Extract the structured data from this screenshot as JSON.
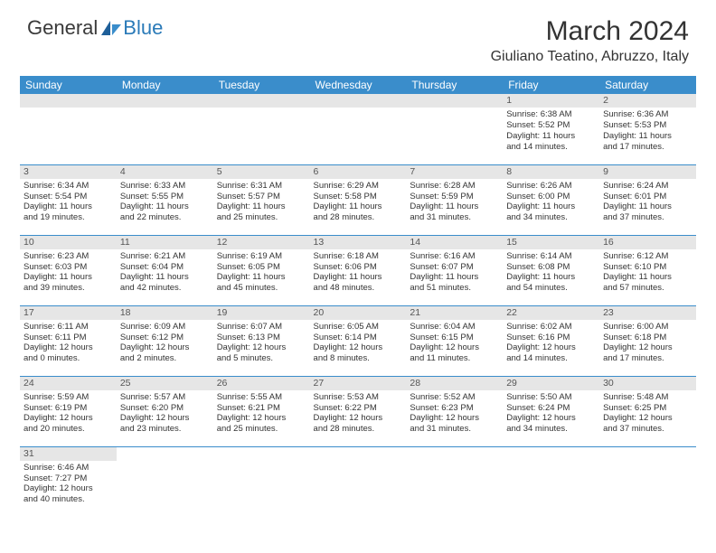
{
  "header": {
    "logo_part1": "General",
    "logo_part2": "Blue",
    "month_title": "March 2024",
    "location": "Giuliano Teatino, Abruzzo, Italy"
  },
  "colors": {
    "header_bg": "#3a8dcb",
    "header_text": "#ffffff",
    "daynum_bg": "#e6e6e6",
    "row_border": "#3a8dcb",
    "logo_gray": "#3a3a3a",
    "logo_blue": "#2a7ab8"
  },
  "weekdays": [
    "Sunday",
    "Monday",
    "Tuesday",
    "Wednesday",
    "Thursday",
    "Friday",
    "Saturday"
  ],
  "weeks": [
    [
      null,
      null,
      null,
      null,
      null,
      {
        "n": "1",
        "sr": "Sunrise: 6:38 AM",
        "ss": "Sunset: 5:52 PM",
        "d1": "Daylight: 11 hours",
        "d2": "and 14 minutes."
      },
      {
        "n": "2",
        "sr": "Sunrise: 6:36 AM",
        "ss": "Sunset: 5:53 PM",
        "d1": "Daylight: 11 hours",
        "d2": "and 17 minutes."
      }
    ],
    [
      {
        "n": "3",
        "sr": "Sunrise: 6:34 AM",
        "ss": "Sunset: 5:54 PM",
        "d1": "Daylight: 11 hours",
        "d2": "and 19 minutes."
      },
      {
        "n": "4",
        "sr": "Sunrise: 6:33 AM",
        "ss": "Sunset: 5:55 PM",
        "d1": "Daylight: 11 hours",
        "d2": "and 22 minutes."
      },
      {
        "n": "5",
        "sr": "Sunrise: 6:31 AM",
        "ss": "Sunset: 5:57 PM",
        "d1": "Daylight: 11 hours",
        "d2": "and 25 minutes."
      },
      {
        "n": "6",
        "sr": "Sunrise: 6:29 AM",
        "ss": "Sunset: 5:58 PM",
        "d1": "Daylight: 11 hours",
        "d2": "and 28 minutes."
      },
      {
        "n": "7",
        "sr": "Sunrise: 6:28 AM",
        "ss": "Sunset: 5:59 PM",
        "d1": "Daylight: 11 hours",
        "d2": "and 31 minutes."
      },
      {
        "n": "8",
        "sr": "Sunrise: 6:26 AM",
        "ss": "Sunset: 6:00 PM",
        "d1": "Daylight: 11 hours",
        "d2": "and 34 minutes."
      },
      {
        "n": "9",
        "sr": "Sunrise: 6:24 AM",
        "ss": "Sunset: 6:01 PM",
        "d1": "Daylight: 11 hours",
        "d2": "and 37 minutes."
      }
    ],
    [
      {
        "n": "10",
        "sr": "Sunrise: 6:23 AM",
        "ss": "Sunset: 6:03 PM",
        "d1": "Daylight: 11 hours",
        "d2": "and 39 minutes."
      },
      {
        "n": "11",
        "sr": "Sunrise: 6:21 AM",
        "ss": "Sunset: 6:04 PM",
        "d1": "Daylight: 11 hours",
        "d2": "and 42 minutes."
      },
      {
        "n": "12",
        "sr": "Sunrise: 6:19 AM",
        "ss": "Sunset: 6:05 PM",
        "d1": "Daylight: 11 hours",
        "d2": "and 45 minutes."
      },
      {
        "n": "13",
        "sr": "Sunrise: 6:18 AM",
        "ss": "Sunset: 6:06 PM",
        "d1": "Daylight: 11 hours",
        "d2": "and 48 minutes."
      },
      {
        "n": "14",
        "sr": "Sunrise: 6:16 AM",
        "ss": "Sunset: 6:07 PM",
        "d1": "Daylight: 11 hours",
        "d2": "and 51 minutes."
      },
      {
        "n": "15",
        "sr": "Sunrise: 6:14 AM",
        "ss": "Sunset: 6:08 PM",
        "d1": "Daylight: 11 hours",
        "d2": "and 54 minutes."
      },
      {
        "n": "16",
        "sr": "Sunrise: 6:12 AM",
        "ss": "Sunset: 6:10 PM",
        "d1": "Daylight: 11 hours",
        "d2": "and 57 minutes."
      }
    ],
    [
      {
        "n": "17",
        "sr": "Sunrise: 6:11 AM",
        "ss": "Sunset: 6:11 PM",
        "d1": "Daylight: 12 hours",
        "d2": "and 0 minutes."
      },
      {
        "n": "18",
        "sr": "Sunrise: 6:09 AM",
        "ss": "Sunset: 6:12 PM",
        "d1": "Daylight: 12 hours",
        "d2": "and 2 minutes."
      },
      {
        "n": "19",
        "sr": "Sunrise: 6:07 AM",
        "ss": "Sunset: 6:13 PM",
        "d1": "Daylight: 12 hours",
        "d2": "and 5 minutes."
      },
      {
        "n": "20",
        "sr": "Sunrise: 6:05 AM",
        "ss": "Sunset: 6:14 PM",
        "d1": "Daylight: 12 hours",
        "d2": "and 8 minutes."
      },
      {
        "n": "21",
        "sr": "Sunrise: 6:04 AM",
        "ss": "Sunset: 6:15 PM",
        "d1": "Daylight: 12 hours",
        "d2": "and 11 minutes."
      },
      {
        "n": "22",
        "sr": "Sunrise: 6:02 AM",
        "ss": "Sunset: 6:16 PM",
        "d1": "Daylight: 12 hours",
        "d2": "and 14 minutes."
      },
      {
        "n": "23",
        "sr": "Sunrise: 6:00 AM",
        "ss": "Sunset: 6:18 PM",
        "d1": "Daylight: 12 hours",
        "d2": "and 17 minutes."
      }
    ],
    [
      {
        "n": "24",
        "sr": "Sunrise: 5:59 AM",
        "ss": "Sunset: 6:19 PM",
        "d1": "Daylight: 12 hours",
        "d2": "and 20 minutes."
      },
      {
        "n": "25",
        "sr": "Sunrise: 5:57 AM",
        "ss": "Sunset: 6:20 PM",
        "d1": "Daylight: 12 hours",
        "d2": "and 23 minutes."
      },
      {
        "n": "26",
        "sr": "Sunrise: 5:55 AM",
        "ss": "Sunset: 6:21 PM",
        "d1": "Daylight: 12 hours",
        "d2": "and 25 minutes."
      },
      {
        "n": "27",
        "sr": "Sunrise: 5:53 AM",
        "ss": "Sunset: 6:22 PM",
        "d1": "Daylight: 12 hours",
        "d2": "and 28 minutes."
      },
      {
        "n": "28",
        "sr": "Sunrise: 5:52 AM",
        "ss": "Sunset: 6:23 PM",
        "d1": "Daylight: 12 hours",
        "d2": "and 31 minutes."
      },
      {
        "n": "29",
        "sr": "Sunrise: 5:50 AM",
        "ss": "Sunset: 6:24 PM",
        "d1": "Daylight: 12 hours",
        "d2": "and 34 minutes."
      },
      {
        "n": "30",
        "sr": "Sunrise: 5:48 AM",
        "ss": "Sunset: 6:25 PM",
        "d1": "Daylight: 12 hours",
        "d2": "and 37 minutes."
      }
    ],
    [
      {
        "n": "31",
        "sr": "Sunrise: 6:46 AM",
        "ss": "Sunset: 7:27 PM",
        "d1": "Daylight: 12 hours",
        "d2": "and 40 minutes."
      },
      null,
      null,
      null,
      null,
      null,
      null
    ]
  ]
}
